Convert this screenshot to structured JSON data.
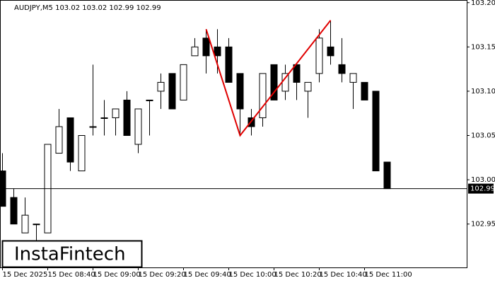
{
  "chart_data": {
    "type": "candlestick",
    "title": "AUDJPY,M5  103.02 103.02 102.99 102.99",
    "logo": "InstaFintech",
    "categories": [
      "15 Dec 2025",
      null,
      null,
      null,
      "15 Dec 08:40",
      null,
      null,
      null,
      "15 Dec 09:00",
      null,
      null,
      null,
      "15 Dec 09:20",
      null,
      null,
      null,
      "15 Dec 09:40",
      null,
      null,
      null,
      "15 Dec 10:00",
      null,
      null,
      null,
      "15 Dec 10:20",
      null,
      null,
      null,
      "15 Dec 10:40",
      null,
      null,
      null,
      "15 Dec 11:00",
      null,
      null
    ],
    "open": [
      103.01,
      102.98,
      102.94,
      102.95,
      102.94,
      103.03,
      103.07,
      103.01,
      103.06,
      103.07,
      103.07,
      103.09,
      103.04,
      103.09,
      103.1,
      103.12,
      103.09,
      103.14,
      103.16,
      103.15,
      103.15,
      103.12,
      103.07,
      103.07,
      103.13,
      103.1,
      103.13,
      103.1,
      103.12,
      103.15,
      103.13,
      103.11,
      103.11,
      103.1,
      103.02
    ],
    "high": [
      103.03,
      102.99,
      102.98,
      102.95,
      103.04,
      103.08,
      103.07,
      103.05,
      103.13,
      103.09,
      103.08,
      103.1,
      103.08,
      103.09,
      103.12,
      103.12,
      103.13,
      103.16,
      103.17,
      103.17,
      103.16,
      103.12,
      103.08,
      103.12,
      103.13,
      103.13,
      103.13,
      103.11,
      103.17,
      103.18,
      103.16,
      103.12,
      103.11,
      103.1,
      103.02
    ],
    "low": [
      102.97,
      102.95,
      102.94,
      102.93,
      102.94,
      103.03,
      103.01,
      103.01,
      103.05,
      103.05,
      103.05,
      103.05,
      103.03,
      103.05,
      103.08,
      103.08,
      103.09,
      103.14,
      103.12,
      103.12,
      103.11,
      103.05,
      103.05,
      103.06,
      103.09,
      103.09,
      103.09,
      103.07,
      103.11,
      103.13,
      103.11,
      103.08,
      103.09,
      103.01,
      102.99
    ],
    "close": [
      102.97,
      102.95,
      102.96,
      102.95,
      103.04,
      103.06,
      103.02,
      103.05,
      103.06,
      103.07,
      103.08,
      103.05,
      103.08,
      103.09,
      103.11,
      103.08,
      103.13,
      103.15,
      103.14,
      103.14,
      103.11,
      103.08,
      103.06,
      103.12,
      103.09,
      103.12,
      103.11,
      103.11,
      103.16,
      103.14,
      103.12,
      103.12,
      103.09,
      103.01,
      102.99
    ],
    "ylim": [
      102.901,
      103.203
    ],
    "yticks": [
      102.95,
      {
        "value": 103,
        "label": "103.00"
      },
      103.05,
      {
        "value": 103.1,
        "label": "103.10"
      },
      103.15,
      {
        "value": 103.2,
        "label": "103.20"
      }
    ],
    "current_price": 102.99,
    "pattern": {
      "color": "#e00000",
      "points": [
        {
          "x": 18,
          "y": 103.17
        },
        {
          "x": 21,
          "y": 103.05
        },
        {
          "x": 29,
          "y": 103.18
        }
      ]
    }
  }
}
